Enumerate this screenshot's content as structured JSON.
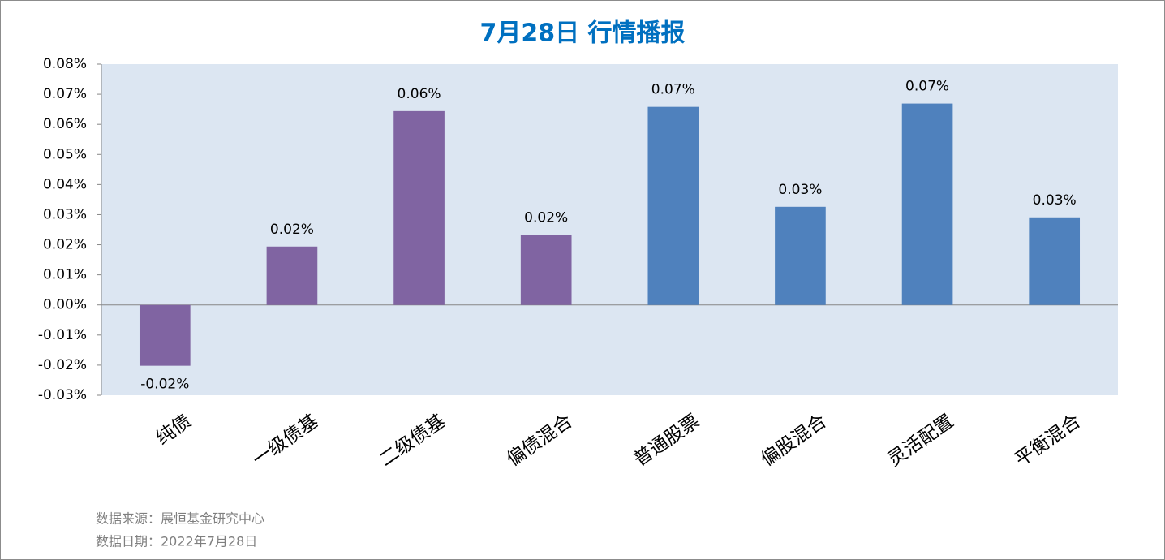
{
  "chart_data": {
    "type": "bar",
    "title": "7月28日  行情播报",
    "categories": [
      "纯债",
      "一级债基",
      "二级债基",
      "偏债混合",
      "普通股票",
      "偏股混合",
      "灵活配置",
      "平衡混合"
    ],
    "values": [
      -0.0202,
      0.0194,
      0.0644,
      0.0232,
      0.0658,
      0.0326,
      0.0669,
      0.0291
    ],
    "value_labels": [
      "-0.02%",
      "0.02%",
      "0.06%",
      "0.02%",
      "0.07%",
      "0.03%",
      "0.07%",
      "0.03%"
    ],
    "colors": [
      "#8064a2",
      "#8064a2",
      "#8064a2",
      "#8064a2",
      "#4f81bd",
      "#4f81bd",
      "#4f81bd",
      "#4f81bd"
    ],
    "ylim": [
      -0.03,
      0.08
    ],
    "yticks": [
      {
        "value": -0.03,
        "label": "-0.03%"
      },
      {
        "value": -0.02,
        "label": "-0.02%"
      },
      {
        "value": -0.01,
        "label": "-0.01%"
      },
      {
        "value": 0,
        "label": "0.00%"
      },
      {
        "value": 0.01,
        "label": "0.01%"
      },
      {
        "value": 0.02,
        "label": "0.02%"
      },
      {
        "value": 0.03,
        "label": "0.03%"
      },
      {
        "value": 0.04,
        "label": "0.04%"
      },
      {
        "value": 0.05,
        "label": "0.05%"
      },
      {
        "value": 0.06,
        "label": "0.06%"
      },
      {
        "value": 0.07,
        "label": "0.07%"
      },
      {
        "value": 0.08,
        "label": "0.08%"
      }
    ],
    "notes": [
      "数据来源：展恒基金研究中心",
      "数据日期：2022年7月28日"
    ]
  }
}
